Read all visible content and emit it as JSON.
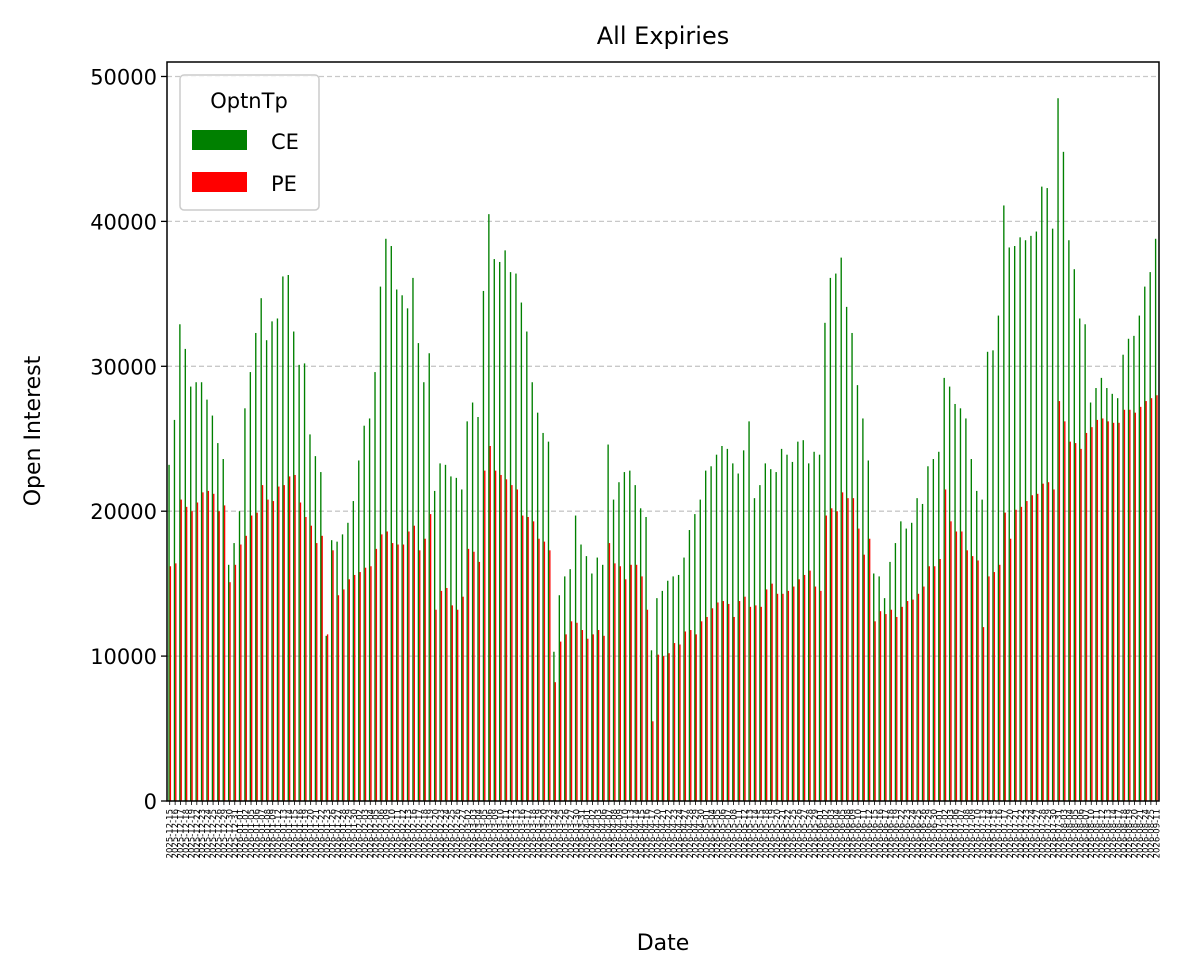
{
  "chart_data": {
    "type": "bar",
    "title": "All Expiries",
    "xlabel": "Date",
    "ylabel": "Open Interest",
    "ylim": [
      0,
      51000
    ],
    "yticks": [
      0,
      10000,
      20000,
      30000,
      40000,
      50000
    ],
    "ytick_labels": [
      "0",
      "10000",
      "20000",
      "30000",
      "40000",
      "50000"
    ],
    "grid": "y dashed",
    "legend": {
      "title": "OptnTp",
      "placement": "top-left"
    },
    "first_date": "2025-12-15",
    "last_date": "2026-09-11",
    "series": [
      {
        "name": "CE",
        "color": "#008000",
        "values": [
          23200,
          26300,
          32900,
          31200,
          28600,
          28900,
          28900,
          27700,
          26600,
          24700,
          23600,
          16300,
          17800,
          20000,
          27100,
          29600,
          32300,
          34700,
          31800,
          33100,
          33300,
          36200,
          36300,
          32400,
          30100,
          30200,
          25300,
          23800,
          22700,
          11400,
          18000,
          17900,
          18400,
          19200,
          20700,
          23500,
          25900,
          26400,
          29600,
          35500,
          38800,
          38300,
          35300,
          34900,
          34000,
          36100,
          31600,
          28900,
          30900,
          21400,
          23300,
          23200,
          22400,
          22300,
          21500,
          26200,
          27500,
          26500,
          35200,
          40500,
          37400,
          37200,
          38000,
          36500,
          36400,
          34400,
          32400,
          28900,
          26800,
          25400,
          24800,
          10300,
          14200,
          15500,
          16000,
          19700,
          17700,
          16900,
          15700,
          16800,
          16300,
          24600,
          20800,
          22000,
          22700,
          22800,
          21800,
          20200,
          19600,
          10400,
          14000,
          14500,
          15200,
          15500,
          15600,
          16800,
          18700,
          19800,
          20800,
          22800,
          23100,
          23900,
          24500,
          24300,
          23300,
          22600,
          24200,
          26200,
          20900,
          21800,
          23300,
          22900,
          22700,
          24300,
          23900,
          23400,
          24800,
          24900,
          23300,
          24100,
          23900,
          33000,
          36100,
          36400,
          37500,
          34100,
          32300,
          28700,
          26400,
          23500,
          15700,
          15500,
          14000,
          16500,
          17800,
          19300,
          18800,
          19200,
          20900,
          20500,
          23100,
          23600,
          24100,
          29200,
          28600,
          27400,
          27100,
          26400,
          23600,
          21400,
          20800,
          31000,
          31100,
          33500,
          41100,
          38200,
          38300,
          38900,
          38700,
          39000,
          39300,
          42400,
          42300,
          39500,
          48500,
          44800,
          38700,
          36700,
          33300,
          32900,
          27500,
          28500,
          29200,
          28500,
          28100,
          27800,
          30800,
          31900,
          32100,
          33500,
          35500,
          36500,
          38800
        ],
        "_comment": "CE"
      },
      {
        "name": "PE",
        "color": "#ff0000",
        "values": [
          16200,
          16400,
          20800,
          20300,
          20000,
          20600,
          21300,
          21400,
          21200,
          20000,
          20400,
          15100,
          16300,
          17700,
          18300,
          19700,
          19900,
          21800,
          20800,
          20700,
          21700,
          21800,
          22400,
          22500,
          20600,
          19600,
          19000,
          17800,
          18300,
          11500,
          17300,
          14200,
          14600,
          15300,
          15600,
          15800,
          16100,
          16200,
          17400,
          18400,
          18600,
          17800,
          17700,
          17700,
          18600,
          19000,
          17300,
          18100,
          19800,
          13200,
          14500,
          14700,
          13500,
          13200,
          14100,
          17400,
          17200,
          16500,
          22800,
          24500,
          22800,
          22500,
          22200,
          21800,
          21500,
          19700,
          19600,
          19300,
          18100,
          17900,
          17300,
          8200,
          11000,
          11500,
          12400,
          12300,
          11800,
          11200,
          11500,
          11800,
          11400,
          17800,
          16400,
          16200,
          15300,
          16300,
          16300,
          15500,
          13200,
          5500,
          10100,
          10000,
          10200,
          10900,
          10800,
          11700,
          11800,
          11500,
          12400,
          12700,
          13300,
          13700,
          13800,
          13600,
          12700,
          13800,
          14100,
          13400,
          13500,
          13400,
          14600,
          15000,
          14300,
          14300,
          14500,
          14800,
          15300,
          15600,
          15900,
          14800,
          14500,
          19700,
          20200,
          20000,
          21300,
          20900,
          20900,
          18800,
          17000,
          18100,
          12400,
          13100,
          12900,
          13200,
          12700,
          13400,
          13800,
          13900,
          14300,
          14800,
          16200,
          16200,
          16700,
          21500,
          19300,
          18600,
          18600,
          17300,
          16900,
          16600,
          12000,
          15500,
          15800,
          16300,
          19900,
          18100,
          20100,
          20300,
          20700,
          21100,
          21200,
          21900,
          22000,
          21500,
          27600,
          26200,
          24800,
          24700,
          24300,
          25400,
          25800,
          26300,
          26400,
          26200,
          26100,
          26100,
          27000,
          27000,
          26800,
          27200,
          27600,
          27800,
          28000
        ],
        "_comment": "PE"
      }
    ]
  }
}
